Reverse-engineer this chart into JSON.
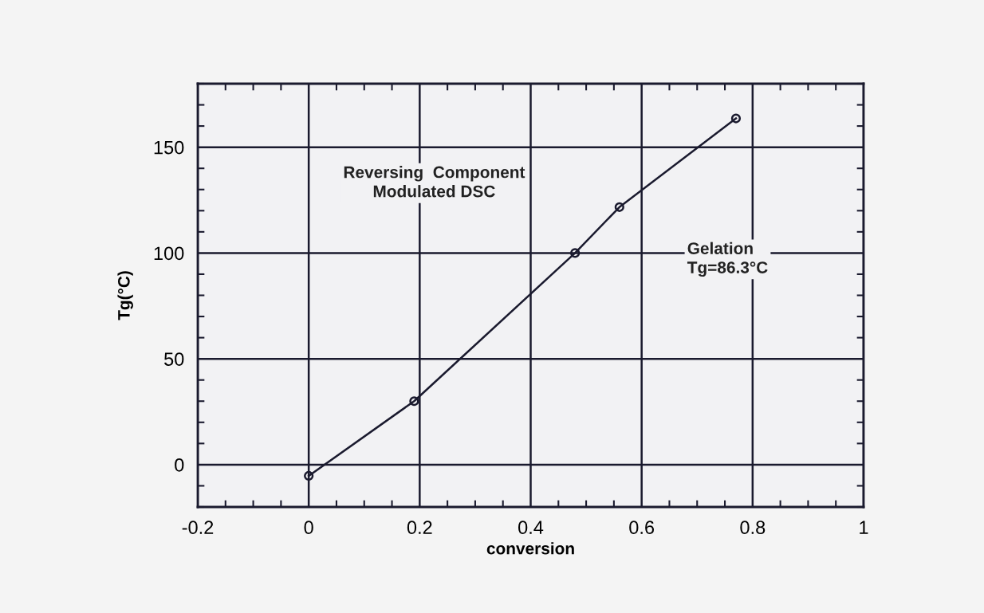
{
  "chart_data": {
    "type": "line",
    "xlabel": "conversion",
    "ylabel": "Tg(°C)",
    "x": [
      0,
      0.19,
      0.48,
      0.56,
      0.77
    ],
    "series": [
      {
        "color": "#1a1a2e",
        "values": [
          -5.3,
          30,
          100,
          121.7,
          163.6
        ]
      }
    ],
    "xlim": [
      -0.2,
      1.0
    ],
    "xticks": [
      -0.2,
      0,
      0.2,
      0.4,
      0.6,
      0.8,
      1
    ],
    "ylim": [
      -20,
      180
    ],
    "yticks": [
      0,
      50,
      100,
      150
    ],
    "grid": true,
    "marker": "circle",
    "line_style": "solid",
    "annotations": [
      "Reversing  Component\nModulated DSC",
      "Gelation\nTg=86.3°C"
    ]
  }
}
